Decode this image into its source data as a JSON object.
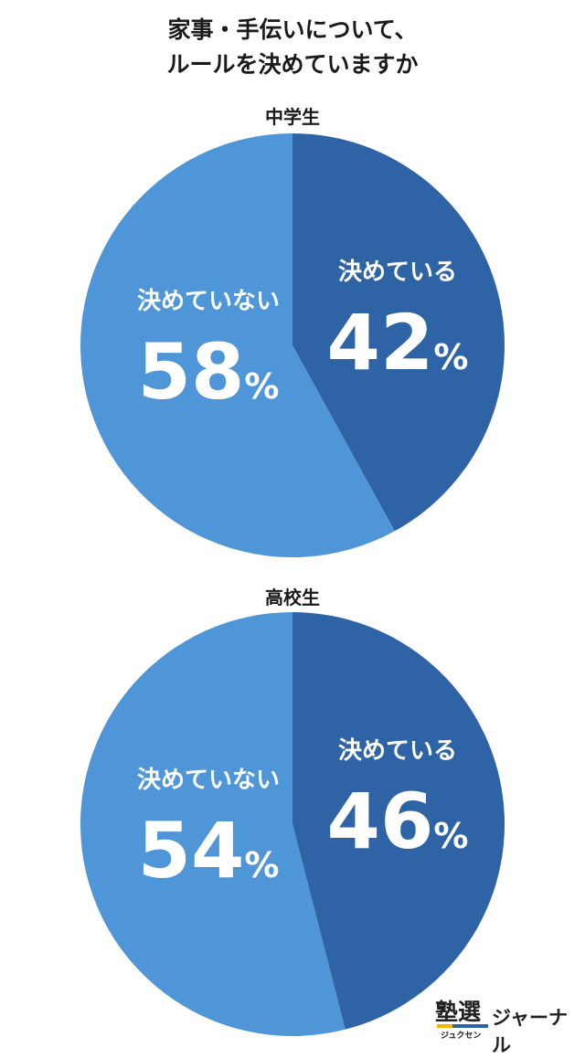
{
  "title_line1": "家事・手伝いについて、",
  "title_line2": "ルールを決めていますか",
  "colors": {
    "decided": "#2e64a6",
    "not_decided": "#4f96d8",
    "label_text": "#ffffff"
  },
  "chart_data": [
    {
      "type": "pie",
      "title": "中学生",
      "labels": [
        "決めている",
        "決めていない"
      ],
      "values": [
        42,
        58
      ],
      "display": [
        "42",
        "58"
      ],
      "unit": "%"
    },
    {
      "type": "pie",
      "title": "高校生",
      "labels": [
        "決めている",
        "決めていない"
      ],
      "values": [
        46,
        54
      ],
      "display": [
        "46",
        "54"
      ],
      "unit": "%"
    }
  ],
  "logo": {
    "kanji": "塾選",
    "kana": "ジュクセン",
    "text": "ジャーナル"
  }
}
